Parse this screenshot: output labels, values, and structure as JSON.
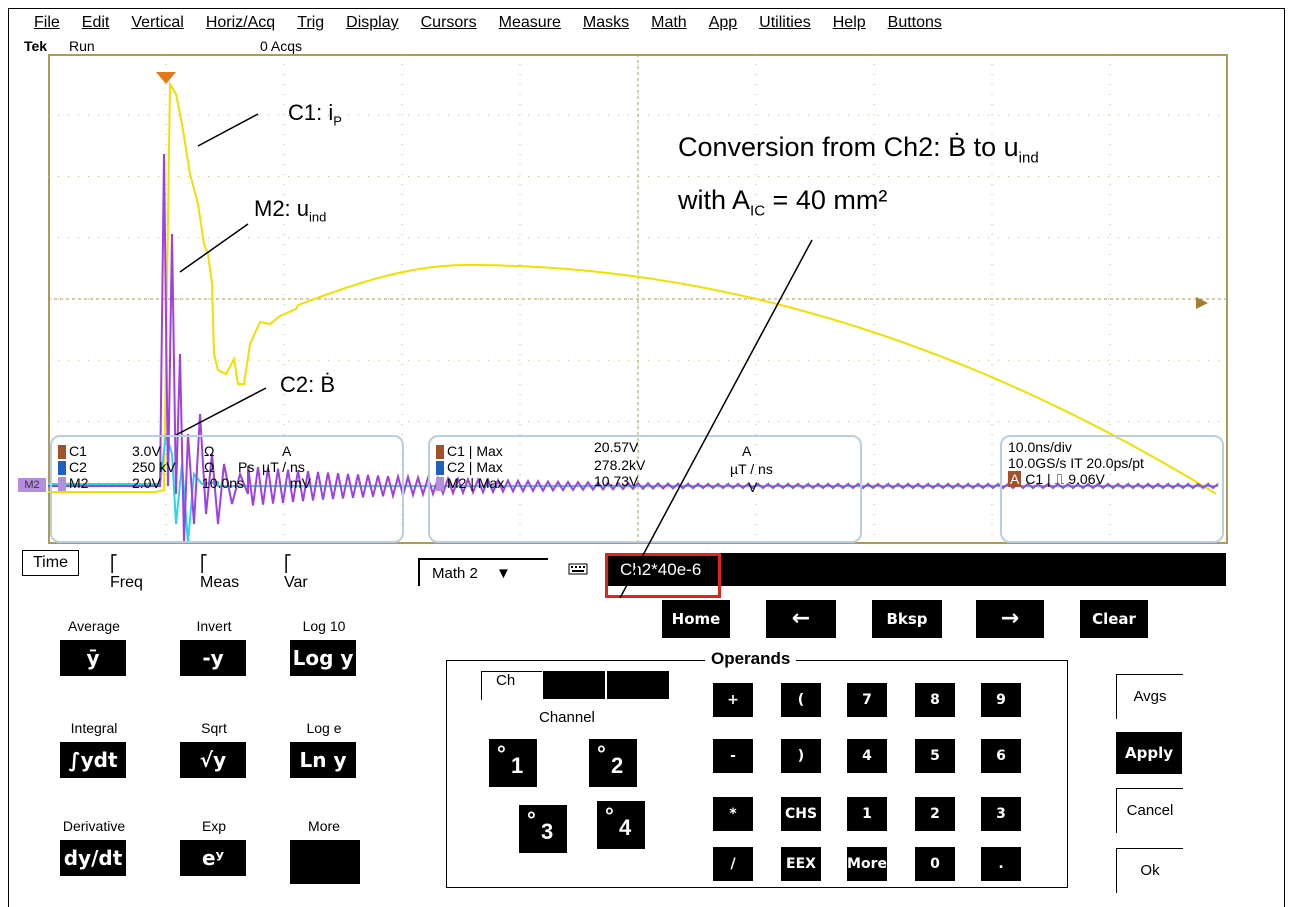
{
  "menu": [
    "File",
    "Edit",
    "Vertical",
    "Horiz/Acq",
    "Trig",
    "Display",
    "Cursors",
    "Measure",
    "Masks",
    "Math",
    "App",
    "Utilities",
    "Help",
    "Buttons"
  ],
  "status": {
    "brand": "Tek",
    "mode": "Run",
    "acqs": "0 Acqs"
  },
  "annotations": {
    "c1": "C1: i",
    "c1_sub": "P",
    "m2": "M2: u",
    "m2_sub": "ind",
    "c2": "C2: Ḃ",
    "conv_line1": "Conversion from Ch2: Ḃ to u",
    "conv_line1_sub": "ind",
    "conv_line2a": "with A",
    "conv_line2_sub": "IC",
    "conv_line2b": " = 40 mm²"
  },
  "channel_settings": [
    {
      "ch": "C1",
      "scale": "3.0V",
      "unit1": "Ω",
      "unit2": "A",
      "color": "#a0522d"
    },
    {
      "ch": "C2",
      "scale": "250 kV",
      "unit1": "Ω",
      "unit2": "µT / ns",
      "extra": "Ps",
      "color": "#1f5fbf"
    },
    {
      "ch": "M2",
      "scale": "2.0V",
      "unit1": "10.0ns",
      "unit2": "mV",
      "color": "#b58ee0"
    }
  ],
  "measurements": [
    {
      "ch": "C1",
      "type": "Max",
      "value": "20.57V",
      "unit": "A"
    },
    {
      "ch": "C2",
      "type": "Max",
      "value": "278.2kV",
      "unit": "µT / ns"
    },
    {
      "ch": "M2",
      "type": "Max",
      "value": "10.73V",
      "unit": "V"
    }
  ],
  "timebase": {
    "div": "10.0ns/div",
    "rate": "10.0GS/s IT 20.0ps/pt",
    "trig_ch": "C1",
    "trig_level": "9.06V",
    "trig_label": "A"
  },
  "marker_m2": "M2",
  "tabs": [
    "Time",
    "Freq",
    "Meas",
    "Var"
  ],
  "math_select": "Math 2",
  "expression": "Ch2*40e-6",
  "nav_buttons": {
    "home": "Home",
    "left": "←",
    "bksp": "Bksp",
    "right": "→",
    "clear": "Clear"
  },
  "functions": [
    {
      "label": "Average",
      "btn": "ȳ"
    },
    {
      "label": "Invert",
      "btn": "-y"
    },
    {
      "label": "Log 10",
      "btn": "Log y"
    },
    {
      "label": "Integral",
      "btn": "∫ydt"
    },
    {
      "label": "Sqrt",
      "btn": "√y"
    },
    {
      "label": "Log e",
      "btn": "Ln y"
    },
    {
      "label": "Derivative",
      "btn": "dy/dt"
    },
    {
      "label": "Exp",
      "btn": "eʸ"
    },
    {
      "label": "More",
      "btn": ""
    }
  ],
  "operands": {
    "title": "Operands",
    "tab_ch": "Ch",
    "channel_label": "Channel",
    "channels": [
      "1",
      "2",
      "3",
      "4"
    ],
    "keys": [
      [
        "+",
        "(",
        "7",
        "8",
        "9"
      ],
      [
        "-",
        ")",
        "4",
        "5",
        "6"
      ],
      [
        "*",
        "CHS",
        "1",
        "2",
        "3"
      ],
      [
        "/",
        "EEX",
        "More",
        "0",
        "."
      ]
    ]
  },
  "side": {
    "avgs": "Avgs",
    "apply": "Apply",
    "cancel": "Cancel",
    "ok": "Ok"
  }
}
